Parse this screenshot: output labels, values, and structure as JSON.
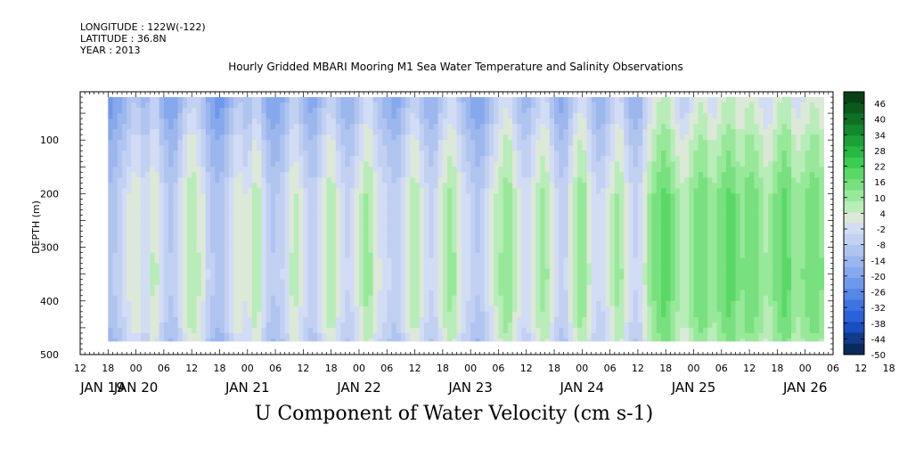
{
  "header": {
    "longitude": "LONGITUDE : 122W(-122)",
    "latitude": "LATITUDE : 36.8N",
    "year": "YEAR : 2013"
  },
  "chart_data": {
    "type": "heatmap",
    "title": "Hourly Gridded MBARI Mooring M1 Sea Water Temperature and Salinity Observations",
    "caption": "U Component of Water Velocity (cm s-1)",
    "ylabel": "DEPTH (m)",
    "y_axis": {
      "inverted": true,
      "range": [
        500,
        10
      ],
      "ticks": [
        100,
        200,
        300,
        400,
        500
      ]
    },
    "x_axis": {
      "range_hours": [
        0,
        162
      ],
      "hour_ticks": [
        "12",
        "18",
        "00",
        "06",
        "12",
        "18",
        "00",
        "06",
        "12",
        "18",
        "00",
        "06",
        "12",
        "18",
        "00",
        "06",
        "12",
        "18",
        "00",
        "06",
        "12",
        "18",
        "00",
        "06",
        "12",
        "18",
        "00",
        "06",
        "12",
        "18",
        "00",
        "06"
      ],
      "day_labels": [
        "JAN 19",
        "JAN 20",
        "JAN 21",
        "JAN 22",
        "JAN 23",
        "JAN 24",
        "JAN 25",
        "JAN 26"
      ]
    },
    "colorbar": {
      "labels": [
        "46",
        "40",
        "34",
        "28",
        "22",
        "16",
        "10",
        "4",
        "-2",
        "-8",
        "-14",
        "-20",
        "-26",
        "-32",
        "-38",
        "-44",
        "-50"
      ],
      "range": [
        -50,
        49
      ],
      "colors": [
        "#0a2a5c",
        "#123a8a",
        "#1a4ec0",
        "#2a62d8",
        "#3e74e0",
        "#5686e6",
        "#6e98ea",
        "#86a8ec",
        "#9cb6ee",
        "#b0c4f0",
        "#c2d0f2",
        "#d2dcf4",
        "#dce8d8",
        "#b8ecb8",
        "#98e89a",
        "#78e07e",
        "#5ad866",
        "#3ccc52",
        "#28b844",
        "#1ca038",
        "#14882e",
        "#0e7026",
        "#0a5a1e",
        "#064216"
      ]
    },
    "time_profile": [
      {
        "h": 6,
        "u": -14
      },
      {
        "h": 8,
        "u": -10
      },
      {
        "h": 10,
        "u": -4
      },
      {
        "h": 12,
        "u": 2
      },
      {
        "h": 14,
        "u": -6
      },
      {
        "h": 16,
        "u": 4
      },
      {
        "h": 18,
        "u": -8
      },
      {
        "h": 20,
        "u": -12
      },
      {
        "h": 22,
        "u": -2
      },
      {
        "h": 24,
        "u": 6
      },
      {
        "h": 26,
        "u": 0
      },
      {
        "h": 28,
        "u": -10
      },
      {
        "h": 30,
        "u": -14
      },
      {
        "h": 32,
        "u": -6
      },
      {
        "h": 34,
        "u": 2
      },
      {
        "h": 36,
        "u": -4
      },
      {
        "h": 38,
        "u": 6
      },
      {
        "h": 40,
        "u": -8
      },
      {
        "h": 42,
        "u": -12
      },
      {
        "h": 44,
        "u": -6
      },
      {
        "h": 46,
        "u": 4
      },
      {
        "h": 48,
        "u": -4
      },
      {
        "h": 50,
        "u": -10
      },
      {
        "h": 52,
        "u": -2
      },
      {
        "h": 54,
        "u": 6
      },
      {
        "h": 56,
        "u": -4
      },
      {
        "h": 58,
        "u": -8
      },
      {
        "h": 60,
        "u": 0
      },
      {
        "h": 62,
        "u": 8
      },
      {
        "h": 64,
        "u": -2
      },
      {
        "h": 66,
        "u": -6
      },
      {
        "h": 68,
        "u": -10
      },
      {
        "h": 70,
        "u": -2
      },
      {
        "h": 72,
        "u": 6
      },
      {
        "h": 74,
        "u": -4
      },
      {
        "h": 76,
        "u": -8
      },
      {
        "h": 78,
        "u": 2
      },
      {
        "h": 80,
        "u": 8
      },
      {
        "h": 82,
        "u": -2
      },
      {
        "h": 84,
        "u": -8
      },
      {
        "h": 86,
        "u": -12
      },
      {
        "h": 88,
        "u": -4
      },
      {
        "h": 90,
        "u": 4
      },
      {
        "h": 92,
        "u": 10
      },
      {
        "h": 94,
        "u": 0
      },
      {
        "h": 96,
        "u": -6
      },
      {
        "h": 98,
        "u": 2
      },
      {
        "h": 100,
        "u": 8
      },
      {
        "h": 102,
        "u": -4
      },
      {
        "h": 104,
        "u": -10
      },
      {
        "h": 106,
        "u": 2
      },
      {
        "h": 108,
        "u": 10
      },
      {
        "h": 110,
        "u": -2
      },
      {
        "h": 112,
        "u": -8
      },
      {
        "h": 114,
        "u": 0
      },
      {
        "h": 116,
        "u": 8
      },
      {
        "h": 118,
        "u": -4
      },
      {
        "h": 120,
        "u": -8
      },
      {
        "h": 122,
        "u": 4
      },
      {
        "h": 124,
        "u": 12
      },
      {
        "h": 126,
        "u": 16
      },
      {
        "h": 128,
        "u": 8
      },
      {
        "h": 130,
        "u": 2
      },
      {
        "h": 132,
        "u": 10
      },
      {
        "h": 134,
        "u": 14
      },
      {
        "h": 136,
        "u": 6
      },
      {
        "h": 138,
        "u": 12
      },
      {
        "h": 140,
        "u": 16
      },
      {
        "h": 142,
        "u": 8
      },
      {
        "h": 144,
        "u": 14
      },
      {
        "h": 146,
        "u": 10
      },
      {
        "h": 148,
        "u": 4
      },
      {
        "h": 150,
        "u": 12
      },
      {
        "h": 152,
        "u": 16
      },
      {
        "h": 154,
        "u": 6
      },
      {
        "h": 156,
        "u": 10
      },
      {
        "h": 158,
        "u": 14
      },
      {
        "h": 160,
        "u": 8
      }
    ],
    "depth_profile": [
      {
        "d": 20,
        "u": -10
      },
      {
        "d": 60,
        "u": -8
      },
      {
        "d": 100,
        "u": -4
      },
      {
        "d": 150,
        "u": -2
      },
      {
        "d": 200,
        "u": 2
      },
      {
        "d": 250,
        "u": 2
      },
      {
        "d": 300,
        "u": 2
      },
      {
        "d": 350,
        "u": 3
      },
      {
        "d": 400,
        "u": 2
      },
      {
        "d": 450,
        "u": 0
      },
      {
        "d": 475,
        "u": -2
      }
    ],
    "data_extent": {
      "hours": [
        6,
        160
      ],
      "depth": [
        20,
        475
      ]
    }
  }
}
